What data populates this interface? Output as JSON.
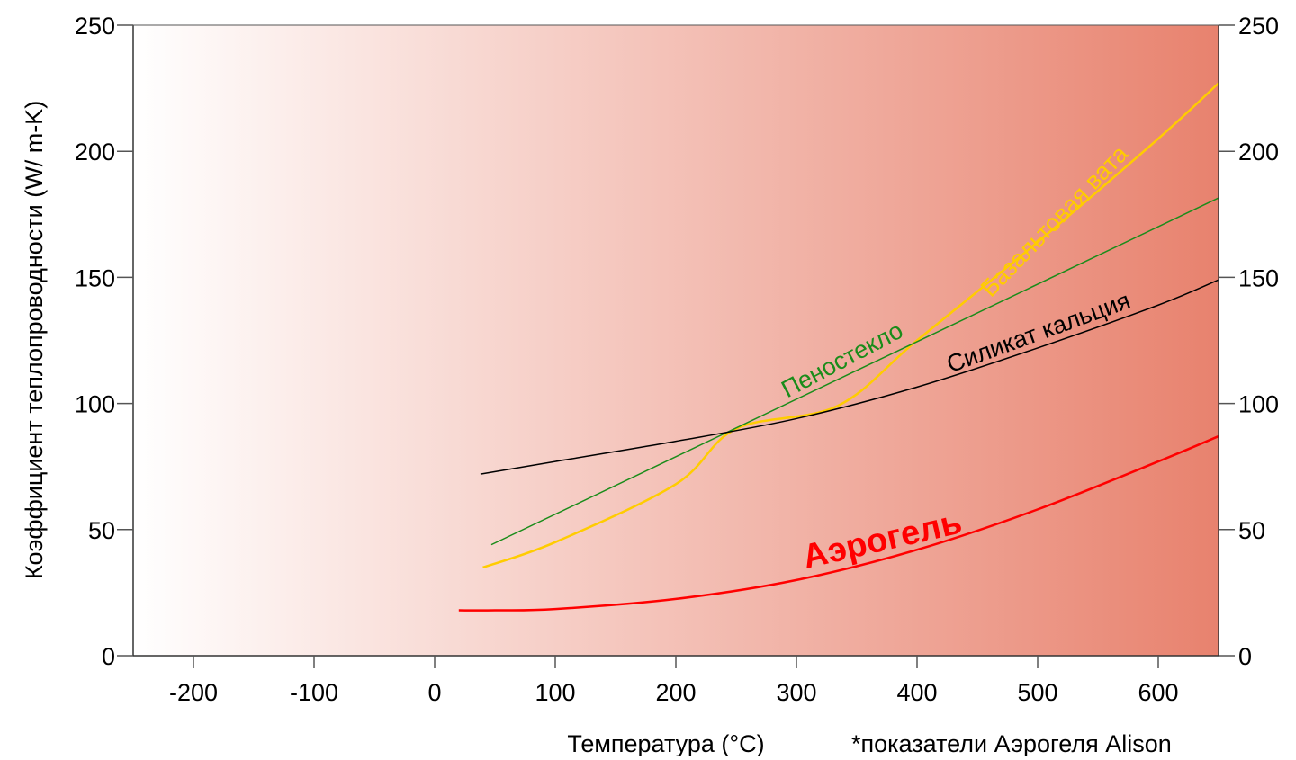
{
  "chart_data": {
    "type": "line",
    "title": "",
    "xlabel": "Температура (°C)",
    "ylabel": "Коэффициент теплопроводности (W/ m-K)",
    "footnote": "*показатели Аэрогеля Alison",
    "xlim": [
      -250,
      650
    ],
    "ylim": [
      0,
      250
    ],
    "xticks": [
      -200,
      -100,
      0,
      100,
      200,
      300,
      400,
      500,
      600
    ],
    "yticks": [
      0,
      50,
      100,
      150,
      200,
      250
    ],
    "grid": false,
    "legend": "inline labels",
    "background_gradient": [
      "#ffffff",
      "#e8826e"
    ],
    "series": [
      {
        "name": "Аэрогель",
        "color": "#ff0000",
        "bold": true,
        "x": [
          20,
          50,
          100,
          200,
          300,
          400,
          500,
          600,
          650
        ],
        "y": [
          18,
          18,
          18.5,
          22.5,
          30,
          42,
          58,
          77,
          87
        ]
      },
      {
        "name": "Базальтовая вата",
        "color": "#ffcc00",
        "x": [
          40,
          100,
          200,
          250,
          334,
          400,
          500,
          600,
          650
        ],
        "y": [
          35,
          45,
          68,
          90,
          99,
          125,
          164,
          205,
          227
        ]
      },
      {
        "name": "Пеностекло",
        "color": "#1a8c1a",
        "x": [
          47,
          650
        ],
        "y": [
          44,
          181.5
        ]
      },
      {
        "name": "Силикат кальция",
        "color": "#000000",
        "x": [
          38,
          100,
          200,
          300,
          400,
          500,
          600,
          650
        ],
        "y": [
          72,
          77,
          85,
          94,
          106.5,
          122,
          139,
          149
        ]
      }
    ]
  }
}
